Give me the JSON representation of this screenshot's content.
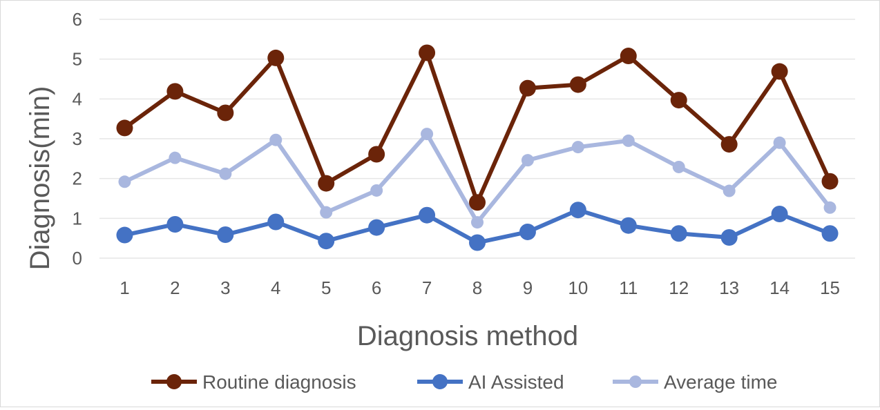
{
  "chart_data": {
    "type": "line",
    "title": "",
    "xlabel": "Diagnosis method",
    "ylabel": "Diagnosis(min)",
    "categories": [
      "1",
      "2",
      "3",
      "4",
      "5",
      "6",
      "7",
      "8",
      "9",
      "10",
      "11",
      "12",
      "13",
      "14",
      "15"
    ],
    "ylim": [
      0,
      6
    ],
    "yticks": [
      "0",
      "1",
      "2",
      "3",
      "4",
      "5",
      "6"
    ],
    "grid": true,
    "legend_position": "bottom",
    "series": [
      {
        "name": "Routine diagnosis",
        "color": "#6b2409",
        "values": [
          3.27,
          4.19,
          3.65,
          5.03,
          1.88,
          2.61,
          5.16,
          1.4,
          4.27,
          4.36,
          5.08,
          3.97,
          2.86,
          4.69,
          1.93
        ]
      },
      {
        "name": "AI Assisted",
        "color": "#4472c4",
        "values": [
          0.58,
          0.85,
          0.59,
          0.91,
          0.43,
          0.77,
          1.08,
          0.39,
          0.66,
          1.21,
          0.82,
          0.62,
          0.52,
          1.11,
          0.62
        ]
      },
      {
        "name": "Average time",
        "color": "#a9b7df",
        "values": [
          1.92,
          2.52,
          2.12,
          2.97,
          1.15,
          1.7,
          3.12,
          0.9,
          2.46,
          2.79,
          2.95,
          2.29,
          1.69,
          2.9,
          1.27
        ]
      }
    ]
  }
}
